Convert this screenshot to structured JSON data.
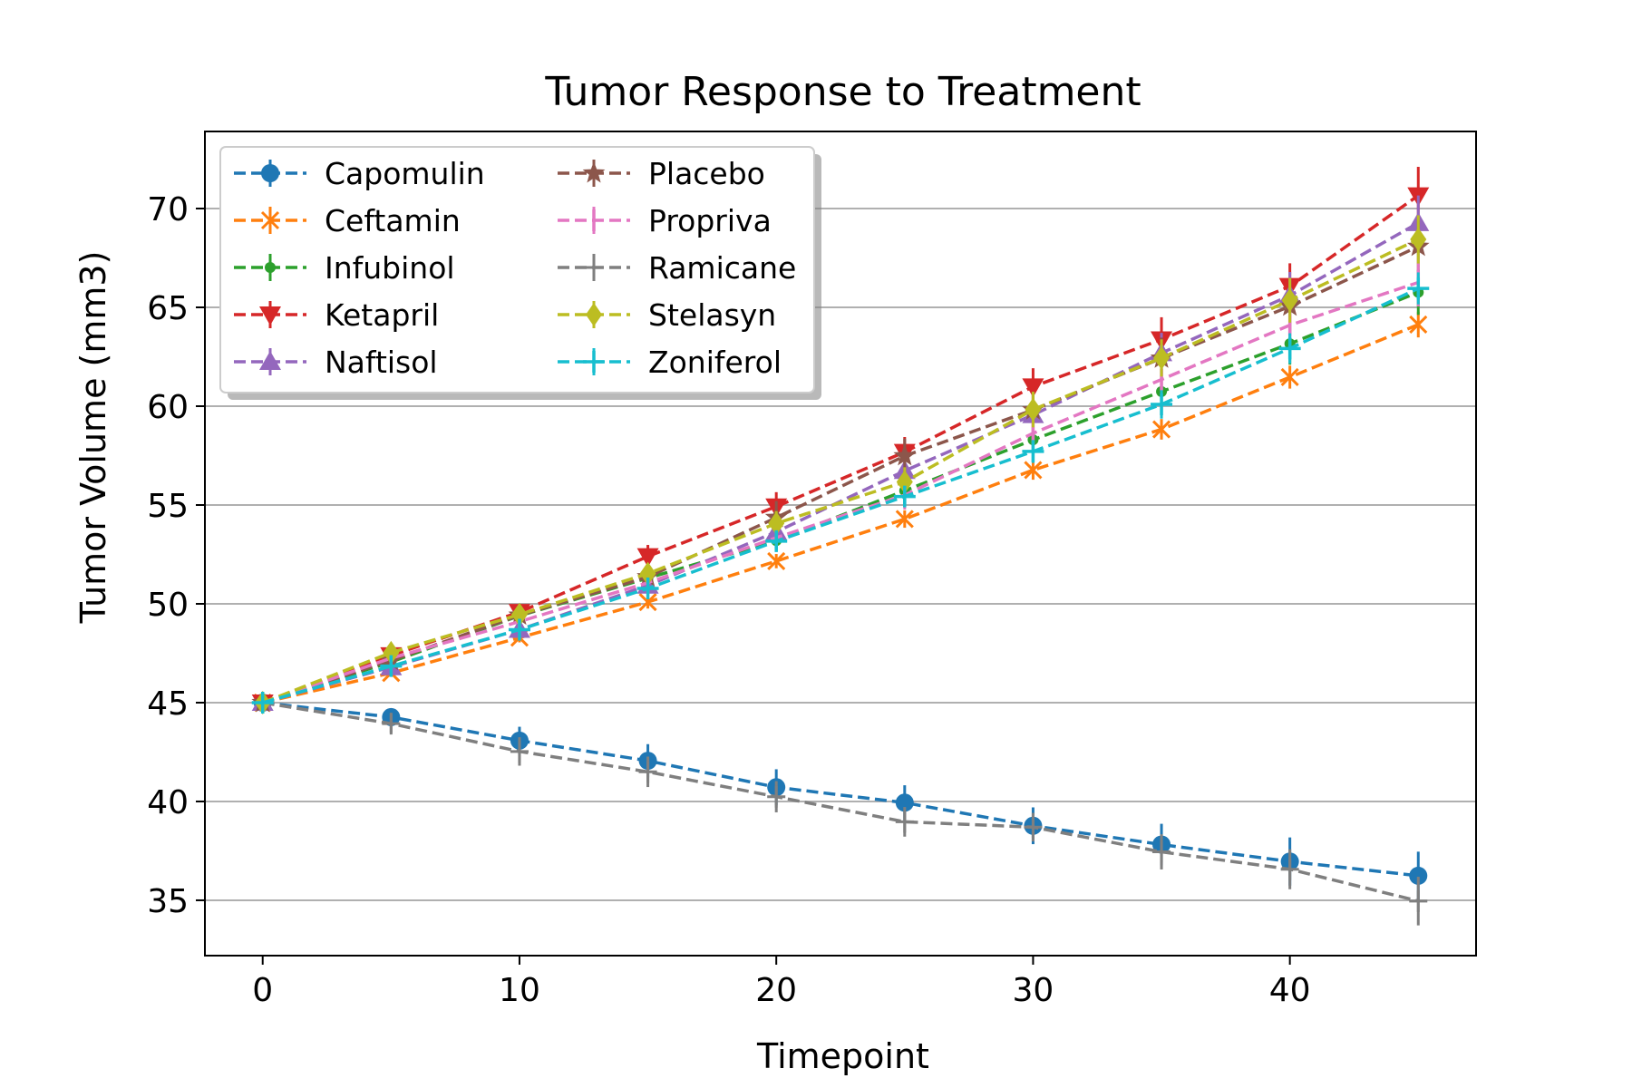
{
  "chart_data": {
    "type": "line",
    "title": "Tumor Response to Treatment",
    "xlabel": "Timepoint",
    "ylabel": "Tumor Volume (mm3)",
    "xlim": [
      -2.25,
      47.25
    ],
    "ylim": [
      32.2,
      73.9
    ],
    "xticks": [
      0,
      10,
      20,
      30,
      40
    ],
    "yticks": [
      35,
      40,
      45,
      50,
      55,
      60,
      65,
      70
    ],
    "grid": "y",
    "legend": {
      "position": "top-left",
      "columns": 2
    },
    "x": [
      0,
      5,
      10,
      15,
      20,
      25,
      30,
      35,
      40,
      45
    ],
    "series": [
      {
        "name": "Capomulin",
        "color": "#1f77b4",
        "marker": "circle",
        "values": [
          45.0,
          44.27,
          43.08,
          42.06,
          40.72,
          39.94,
          38.77,
          37.82,
          36.96,
          36.24
        ],
        "errors": [
          0,
          0.45,
          0.7,
          0.84,
          0.91,
          0.88,
          0.93,
          1.05,
          1.22,
          1.22
        ]
      },
      {
        "name": "Ceftamin",
        "color": "#ff7f0e",
        "marker": "x",
        "values": [
          45.0,
          46.5,
          48.29,
          50.09,
          52.16,
          54.29,
          56.77,
          58.83,
          61.47,
          64.13
        ],
        "errors": [
          0,
          0.16,
          0.24,
          0.33,
          0.36,
          0.44,
          0.49,
          0.52,
          0.58,
          0.65
        ]
      },
      {
        "name": "Infubinol",
        "color": "#2ca02c",
        "marker": "point",
        "values": [
          45.0,
          47.06,
          49.4,
          51.3,
          53.2,
          55.72,
          58.3,
          60.74,
          63.16,
          65.76
        ],
        "errors": [
          0,
          0.24,
          0.28,
          0.36,
          0.48,
          0.55,
          0.63,
          0.98,
          1.06,
          1.14
        ]
      },
      {
        "name": "Ketapril",
        "color": "#d62728",
        "marker": "triangle-down",
        "values": [
          45.0,
          47.39,
          49.58,
          52.4,
          54.92,
          57.68,
          60.99,
          63.37,
          66.07,
          70.66
        ],
        "errors": [
          0,
          0.26,
          0.36,
          0.58,
          0.73,
          0.76,
          0.93,
          1.13,
          1.16,
          1.45
        ]
      },
      {
        "name": "Naftisol",
        "color": "#9467bd",
        "marker": "triangle-up",
        "values": [
          45.0,
          46.8,
          48.69,
          50.93,
          53.64,
          56.73,
          59.56,
          62.69,
          65.6,
          69.27
        ],
        "errors": [
          0,
          0.2,
          0.36,
          0.6,
          0.81,
          0.97,
          1.01,
          1.02,
          1.19,
          1.39
        ]
      },
      {
        "name": "Placebo",
        "color": "#8c564b",
        "marker": "star",
        "values": [
          45.0,
          47.13,
          49.42,
          51.36,
          54.36,
          57.48,
          59.81,
          62.42,
          65.05,
          68.08
        ],
        "errors": [
          0,
          0.22,
          0.4,
          0.61,
          0.84,
          0.88,
          0.93,
          1.05,
          1.22,
          1.35
        ]
      },
      {
        "name": "Propriva",
        "color": "#e377c2",
        "marker": "vline",
        "values": [
          45.0,
          47.25,
          49.1,
          51.07,
          53.35,
          55.5,
          58.63,
          61.35,
          64.1,
          66.26
        ],
        "errors": [
          0,
          0.23,
          0.38,
          0.47,
          0.56,
          0.73,
          0.76,
          0.89,
          1.17,
          1.21
        ]
      },
      {
        "name": "Ramicane",
        "color": "#7f7f7f",
        "marker": "plus-thin",
        "values": [
          45.0,
          43.94,
          42.53,
          41.5,
          40.24,
          38.97,
          38.7,
          37.45,
          36.57,
          34.96
        ],
        "errors": [
          0,
          0.48,
          0.72,
          0.77,
          0.79,
          0.75,
          0.72,
          0.89,
          1.01,
          1.23
        ]
      },
      {
        "name": "Stelasyn",
        "color": "#bcbd22",
        "marker": "diamond",
        "values": [
          45.0,
          47.53,
          49.46,
          51.53,
          54.07,
          56.17,
          59.83,
          62.44,
          65.36,
          68.44
        ],
        "errors": [
          0,
          0.24,
          0.43,
          0.49,
          0.62,
          0.74,
          0.9,
          0.94,
          1.13,
          1.22
        ]
      },
      {
        "name": "Zoniferol",
        "color": "#17becf",
        "marker": "plus",
        "values": [
          45.0,
          46.85,
          48.69,
          50.78,
          53.17,
          55.43,
          57.71,
          60.09,
          62.92,
          65.96
        ],
        "errors": [
          0,
          0.19,
          0.26,
          0.35,
          0.44,
          0.52,
          0.58,
          0.72,
          0.77,
          0.81
        ]
      }
    ]
  }
}
